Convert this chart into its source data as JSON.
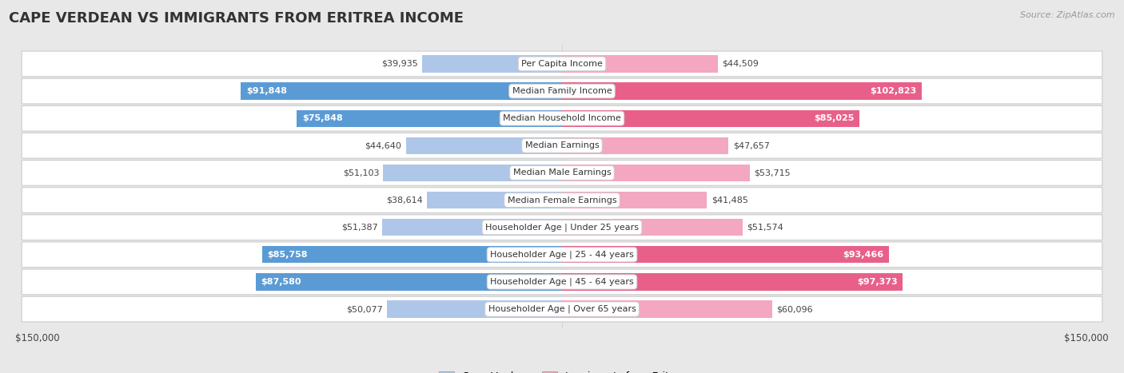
{
  "title": "CAPE VERDEAN VS IMMIGRANTS FROM ERITREA INCOME",
  "source": "Source: ZipAtlas.com",
  "categories": [
    "Per Capita Income",
    "Median Family Income",
    "Median Household Income",
    "Median Earnings",
    "Median Male Earnings",
    "Median Female Earnings",
    "Householder Age | Under 25 years",
    "Householder Age | 25 - 44 years",
    "Householder Age | 45 - 64 years",
    "Householder Age | Over 65 years"
  ],
  "cape_verdean": [
    39935,
    91848,
    75848,
    44640,
    51103,
    38614,
    51387,
    85758,
    87580,
    50077
  ],
  "eritrea": [
    44509,
    102823,
    85025,
    47657,
    53715,
    41485,
    51574,
    93466,
    97373,
    60096
  ],
  "cv_dark_color": "#5b9bd5",
  "cv_light_color": "#aec6e8",
  "er_dark_color": "#e8608a",
  "er_light_color": "#f4a7c0",
  "background_color": "#e8e8e8",
  "row_bg_color": "#ffffff",
  "row_border_color": "#cccccc",
  "max_value": 150000,
  "dark_threshold": 70000,
  "legend_cape_verdean": "Cape Verdean",
  "legend_eritrea": "Immigrants from Eritrea",
  "title_fontsize": 13,
  "label_fontsize": 8,
  "value_fontsize": 8
}
